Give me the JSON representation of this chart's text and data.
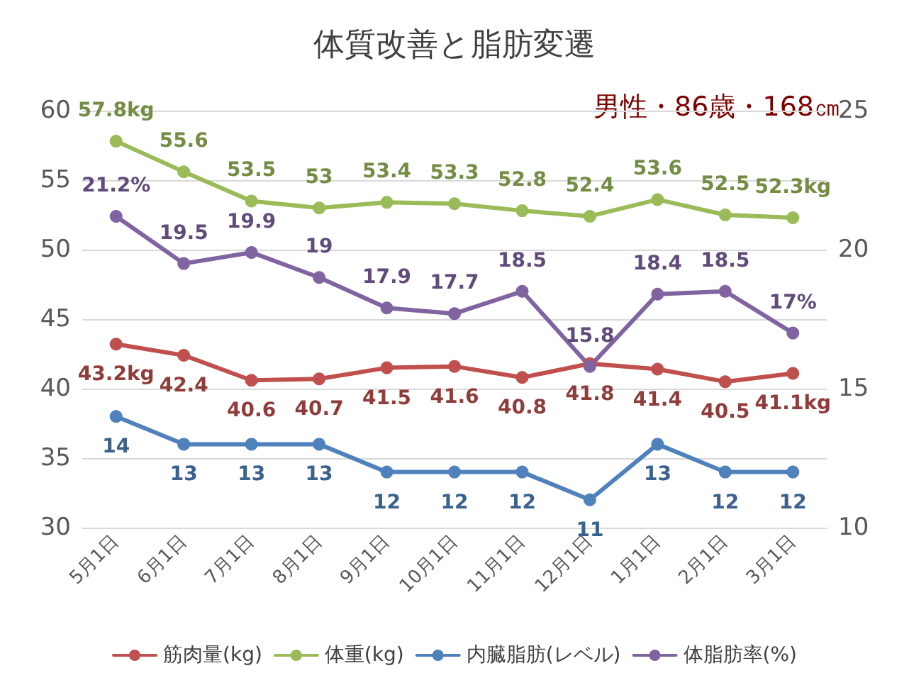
{
  "chart_data": {
    "type": "line",
    "title": "体質改善と脂肪変遷",
    "annotations": [
      "男性・86歳・168㎝"
    ],
    "categories": [
      "5月1日",
      "6月1日",
      "7月1日",
      "8月1日",
      "9月1日",
      "10月1日",
      "11月1日",
      "12月1日",
      "1月1日",
      "2月1日",
      "3月1日"
    ],
    "series": [
      {
        "name": "筋肉量(kg)",
        "color": "#c0504d",
        "values": [
          43.2,
          42.4,
          40.6,
          40.7,
          41.5,
          41.6,
          40.8,
          41.8,
          41.4,
          40.5,
          41.1
        ],
        "value_labels": [
          "43.2kg",
          "42.4",
          "40.6",
          "40.7",
          "41.5",
          "41.6",
          "40.8",
          "41.8",
          "41.4",
          "40.5",
          "41.1kg"
        ]
      },
      {
        "name": "体重(kg)",
        "color": "#9bbb59",
        "values": [
          57.8,
          55.6,
          53.5,
          53,
          53.4,
          53.3,
          52.8,
          52.4,
          53.6,
          52.5,
          52.3
        ],
        "value_labels": [
          "57.8kg",
          "55.6",
          "53.5",
          "53",
          "53.4",
          "53.3",
          "52.8",
          "52.4",
          "53.6",
          "52.5",
          "52.3kg"
        ]
      },
      {
        "name": "内臓脂肪(レベル)",
        "color": "#4f81bd",
        "axis": "y2",
        "values": [
          14,
          13,
          13,
          13,
          12,
          12,
          12,
          11,
          13,
          12,
          12
        ],
        "value_labels": [
          "14",
          "13",
          "13",
          "13",
          "12",
          "12",
          "12",
          "11",
          "13",
          "12",
          "12"
        ]
      },
      {
        "name": "体脂肪率(%)",
        "color": "#8064a2",
        "axis": "y2",
        "values": [
          21.2,
          19.5,
          19.9,
          19,
          17.9,
          17.7,
          18.5,
          15.8,
          18.4,
          18.5,
          17
        ],
        "value_labels": [
          "21.2%",
          "19.5",
          "19.9",
          "19",
          "17.9",
          "17.7",
          "18.5",
          "15.8",
          "18.4",
          "18.5",
          "17%"
        ]
      }
    ],
    "ylim": [
      30,
      60
    ],
    "yticks": [
      30,
      35,
      40,
      45,
      50,
      55,
      60
    ],
    "y2lim": [
      10,
      25
    ],
    "y2ticks": [
      10,
      15,
      20,
      25
    ],
    "grid": "y",
    "legend": "bottom",
    "marker": "circle",
    "line_style": "solid"
  }
}
